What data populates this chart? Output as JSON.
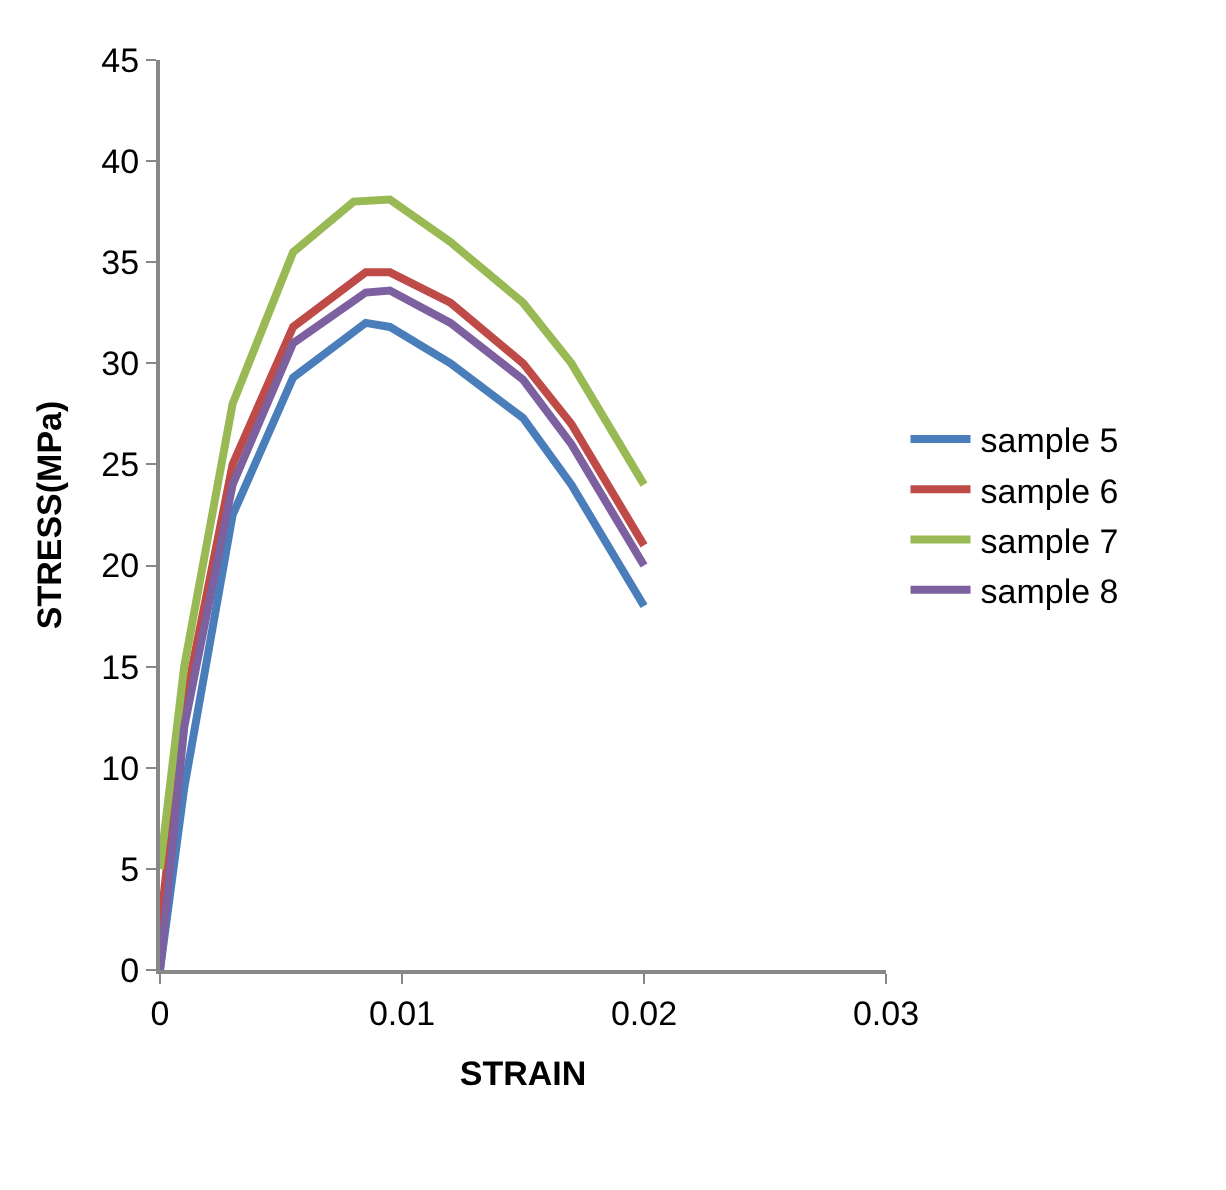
{
  "chart_data": {
    "type": "line",
    "xlabel": "STRAIN",
    "ylabel": "STRESS(MPa)",
    "xlim": [
      0,
      0.03
    ],
    "xticks": [
      0,
      0.01,
      0.02,
      0.03
    ],
    "ylim": [
      0,
      45
    ],
    "yticks": [
      0,
      5,
      10,
      15,
      20,
      25,
      30,
      35,
      40,
      45
    ],
    "legend": "right",
    "marker": "none",
    "line_style": "solid",
    "series": [
      {
        "name": "sample 5",
        "color": "#4a7ebb",
        "x": [
          0,
          0.001,
          0.003,
          0.0055,
          0.0085,
          0.0095,
          0.012,
          0.015,
          0.017,
          0.02
        ],
        "values": [
          0,
          9,
          22.5,
          29.3,
          32,
          31.8,
          30,
          27.3,
          24,
          18
        ]
      },
      {
        "name": "sample 6",
        "color": "#be4b48",
        "x": [
          0,
          0.001,
          0.003,
          0.0055,
          0.0085,
          0.0095,
          0.012,
          0.015,
          0.017,
          0.02
        ],
        "values": [
          2,
          13,
          25,
          31.8,
          34.5,
          34.5,
          33,
          30,
          27,
          21
        ]
      },
      {
        "name": "sample 7",
        "color": "#98b954",
        "x": [
          0,
          0.001,
          0.003,
          0.0055,
          0.008,
          0.0095,
          0.012,
          0.015,
          0.017,
          0.02
        ],
        "values": [
          5,
          15,
          28,
          35.5,
          38,
          38.1,
          36,
          33,
          30,
          24
        ]
      },
      {
        "name": "sample 8",
        "color": "#7d60a0",
        "x": [
          0,
          0.001,
          0.003,
          0.0055,
          0.0085,
          0.0095,
          0.012,
          0.015,
          0.017,
          0.02
        ],
        "values": [
          0,
          12,
          24,
          31,
          33.5,
          33.6,
          32,
          29.2,
          26,
          20
        ]
      }
    ]
  }
}
